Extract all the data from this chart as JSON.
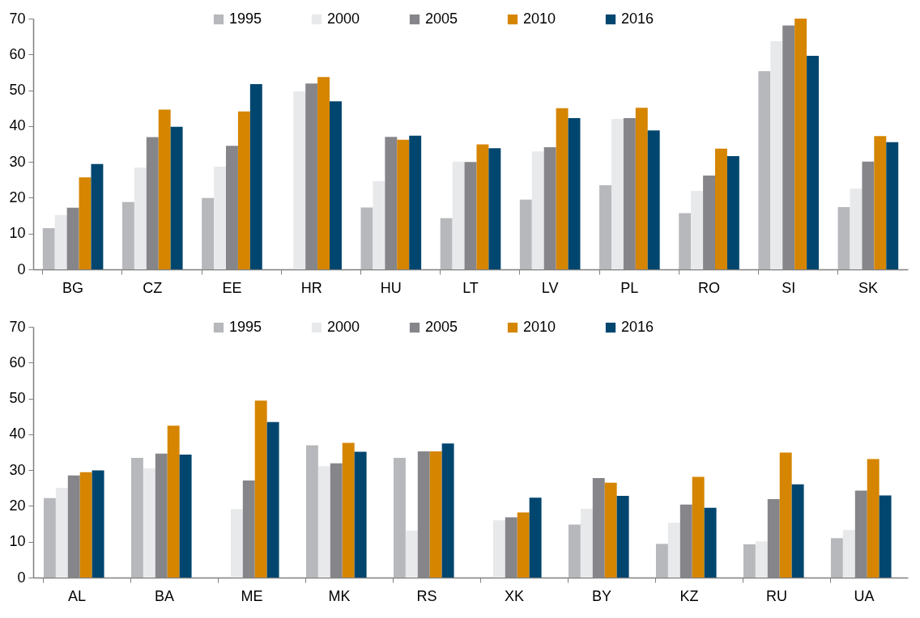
{
  "chart_data": [
    {
      "type": "bar",
      "categories": [
        "BG",
        "CZ",
        "EE",
        "HR",
        "HU",
        "LT",
        "LV",
        "PL",
        "RO",
        "SI",
        "SK"
      ],
      "ylim": [
        0,
        70
      ],
      "yticks": [
        0,
        10,
        20,
        30,
        40,
        50,
        60,
        70
      ],
      "legend": "top",
      "grid": false,
      "series": [
        {
          "name": "1995",
          "color": "#b7b8bc",
          "values": [
            11.5,
            18.8,
            19.9,
            null,
            17.3,
            14.3,
            19.5,
            23.5,
            15.7,
            55.3,
            17.4
          ]
        },
        {
          "name": "2000",
          "color": "#e8e9eb",
          "values": [
            15.2,
            28.4,
            28.7,
            49.7,
            24.6,
            30.1,
            32.9,
            42,
            21.9,
            63.7,
            22.5
          ]
        },
        {
          "name": "2005",
          "color": "#86858a",
          "values": [
            17.2,
            36.9,
            34.5,
            51.9,
            37,
            30,
            34.1,
            42.2,
            26.2,
            68.1,
            30.1
          ]
        },
        {
          "name": "2010",
          "color": "#d58500",
          "values": [
            25.7,
            44.6,
            44.1,
            53.7,
            36.2,
            34.9,
            45,
            45.1,
            33.7,
            70,
            37.2
          ]
        },
        {
          "name": "2016",
          "color": "#00466f",
          "values": [
            29.4,
            39.8,
            51.7,
            46.9,
            37.3,
            33.8,
            42.2,
            38.8,
            31.6,
            59.6,
            35.5
          ]
        }
      ]
    },
    {
      "type": "bar",
      "categories": [
        "AL",
        "BA",
        "ME",
        "MK",
        "RS",
        "XK",
        "BY",
        "KZ",
        "RU",
        "UA"
      ],
      "ylim": [
        0,
        70
      ],
      "yticks": [
        0,
        10,
        20,
        30,
        40,
        50,
        60,
        70
      ],
      "legend": "top",
      "grid": false,
      "series": [
        {
          "name": "1995",
          "color": "#b7b8bc",
          "values": [
            22.2,
            33.4,
            null,
            36.9,
            33.4,
            null,
            14.8,
            9.4,
            9.3,
            11
          ]
        },
        {
          "name": "2000",
          "color": "#e8e9eb",
          "values": [
            25,
            30.5,
            19.1,
            31.1,
            13.1,
            16,
            19.2,
            15.3,
            10.1,
            13.3
          ]
        },
        {
          "name": "2005",
          "color": "#86858a",
          "values": [
            28.5,
            34.6,
            27.1,
            31.9,
            35.2,
            16.8,
            27.8,
            20.4,
            21.9,
            24.3
          ]
        },
        {
          "name": "2010",
          "color": "#d58500",
          "values": [
            29.4,
            42.4,
            49.4,
            37.6,
            35.2,
            18.2,
            26.5,
            28.1,
            34.9,
            33.1
          ]
        },
        {
          "name": "2016",
          "color": "#00466f",
          "values": [
            29.9,
            34.3,
            43.4,
            35.1,
            37.4,
            22.3,
            22.8,
            19.5,
            26,
            22.9
          ]
        }
      ]
    }
  ]
}
